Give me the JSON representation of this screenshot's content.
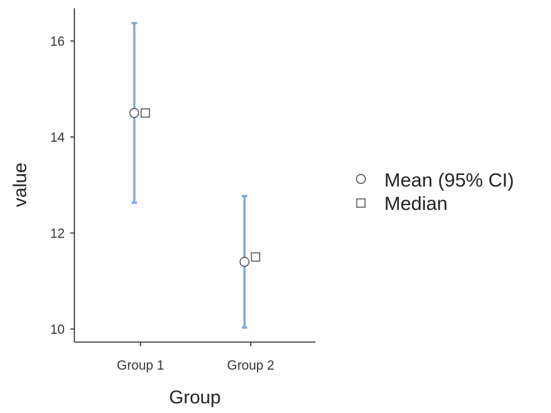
{
  "chart_data": {
    "type": "scatter",
    "title": "",
    "xlabel": "Group",
    "ylabel": "value",
    "categories": [
      "Group 1",
      "Group 2"
    ],
    "ylim": [
      9.7,
      16.7
    ],
    "yticks": [
      10,
      12,
      14,
      16
    ],
    "grid": false,
    "legend_position": "right",
    "series": [
      {
        "name": "Mean (95% CI)",
        "marker": "circle",
        "values": [
          14.5,
          11.4
        ],
        "ci_lower": [
          12.63,
          10.03
        ],
        "ci_upper": [
          16.37,
          12.77
        ]
      },
      {
        "name": "Median",
        "marker": "square",
        "values": [
          14.5,
          11.5
        ]
      }
    ],
    "colors": {
      "error_bar": "#7ba7e6",
      "marker_fill": "#ffffff",
      "marker_stroke": "#333333",
      "axis": "#333333"
    }
  }
}
